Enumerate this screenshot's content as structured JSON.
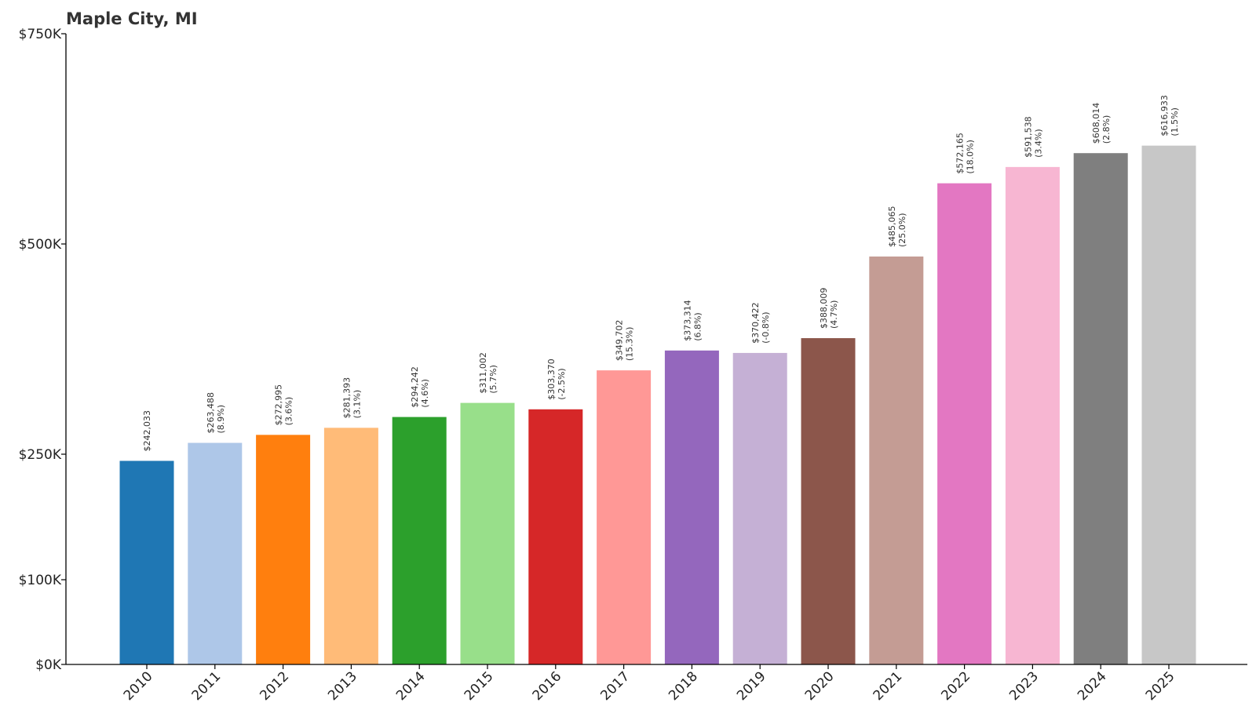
{
  "chart_data": {
    "type": "bar",
    "title": "Maple City, MI",
    "xlabel": "",
    "ylabel": "",
    "categories": [
      "2010",
      "2011",
      "2012",
      "2013",
      "2014",
      "2015",
      "2016",
      "2017",
      "2018",
      "2019",
      "2020",
      "2021",
      "2022",
      "2023",
      "2024",
      "2025"
    ],
    "values": [
      242033,
      263488,
      272995,
      281393,
      294242,
      311002,
      303370,
      349702,
      373314,
      370422,
      388009,
      485065,
      572165,
      591538,
      608014,
      616933
    ],
    "value_labels": [
      "$242,033",
      "$263,488",
      "$272,995",
      "$281,393",
      "$294,242",
      "$311,002",
      "$303,370",
      "$349,702",
      "$373,314",
      "$370,422",
      "$388,009",
      "$485,065",
      "$572,165",
      "$591,538",
      "$608,014",
      "$616,933"
    ],
    "change_labels": [
      "",
      "(8.9%)",
      "(3.6%)",
      "(3.1%)",
      "(4.6%)",
      "(5.7%)",
      "(-2.5%)",
      "(15.3%)",
      "(6.8%)",
      "(-0.8%)",
      "(4.7%)",
      "(25.0%)",
      "(18.0%)",
      "(3.4%)",
      "(2.8%)",
      "(1.5%)"
    ],
    "colors": [
      "#1f77b4",
      "#aec7e8",
      "#ff7f0e",
      "#ffbb78",
      "#2ca02c",
      "#98df8a",
      "#d62728",
      "#ff9896",
      "#9467bd",
      "#c5b0d5",
      "#8c564b",
      "#c49c94",
      "#e377c2",
      "#f7b6d2",
      "#7f7f7f",
      "#c7c7c7"
    ],
    "yticks": [
      0,
      100000,
      250000,
      500000,
      750000
    ],
    "ytick_labels": [
      "$0K",
      "$100K",
      "$250K",
      "$500K",
      "$750K"
    ],
    "ylim": [
      0,
      750000
    ],
    "y_scale": "non-linear",
    "grid": false,
    "legend": "none"
  }
}
